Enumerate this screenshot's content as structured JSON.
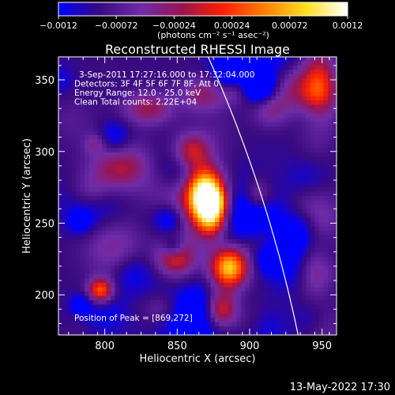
{
  "chart_data": {
    "type": "heatmap",
    "title": "Reconstructed RHESSI Image",
    "xlabel": "Heliocentric X (arcsec)",
    "ylabel": "Heliocentric Y (arcsec)",
    "xlim": [
      768,
      960
    ],
    "ylim": [
      172,
      366
    ],
    "xticks": [
      800,
      850,
      900,
      950
    ],
    "yticks": [
      200,
      250,
      300,
      350
    ],
    "colorbar": {
      "min": -0.0012,
      "max": 0.0012,
      "ticks": [
        "-0.0012",
        "-0.00072",
        "-0.00024",
        "0.00024",
        "0.00072",
        "0.0012"
      ],
      "colors": [
        "#0000ff",
        "#3a0a80",
        "#6f2ca8",
        "#9a1450",
        "#ff2000",
        "#ff8000",
        "#ffe020",
        "#ffffff"
      ],
      "units_label": "(photons cm⁻² s⁻¹ asec⁻²)"
    },
    "annotations": [
      "3-Sep-2011 17:27:16.000 to 17:32:04.000",
      "Detectors: 3F 4F 5F 6F 7F 8F, Att 0",
      "Energy Range: 12.0 - 25.0 keV",
      "Clean     Total counts: 2.22E+04"
    ],
    "peak_label": "Position of Peak = [869,272]",
    "peak": [
      869,
      272
    ],
    "sources": [
      {
        "x": 869,
        "y": 272,
        "amp": 1.0,
        "sx": 9,
        "sy": 13
      },
      {
        "x": 874,
        "y": 255,
        "amp": 0.75,
        "sx": 8,
        "sy": 12
      },
      {
        "x": 886,
        "y": 219,
        "amp": 0.85,
        "sx": 9,
        "sy": 10
      },
      {
        "x": 860,
        "y": 300,
        "amp": 0.5,
        "sx": 9,
        "sy": 9
      },
      {
        "x": 880,
        "y": 190,
        "amp": 0.55,
        "sx": 8,
        "sy": 9
      },
      {
        "x": 797,
        "y": 203,
        "amp": 0.65,
        "sx": 6,
        "sy": 6
      },
      {
        "x": 810,
        "y": 290,
        "amp": 0.45,
        "sx": 14,
        "sy": 12
      },
      {
        "x": 790,
        "y": 272,
        "amp": 0.35,
        "sx": 10,
        "sy": 10
      },
      {
        "x": 848,
        "y": 225,
        "amp": 0.4,
        "sx": 9,
        "sy": 8
      },
      {
        "x": 870,
        "y": 340,
        "amp": 0.35,
        "sx": 12,
        "sy": 9
      },
      {
        "x": 948,
        "y": 345,
        "amp": 0.45,
        "sx": 8,
        "sy": 18
      },
      {
        "x": 945,
        "y": 215,
        "amp": 0.3,
        "sx": 8,
        "sy": 12
      },
      {
        "x": 915,
        "y": 330,
        "amp": 0.3,
        "sx": 9,
        "sy": 10
      },
      {
        "x": 830,
        "y": 330,
        "amp": 0.35,
        "sx": 12,
        "sy": 8
      },
      {
        "x": 905,
        "y": 270,
        "amp": 0.25,
        "sx": 6,
        "sy": 8
      },
      {
        "x": 840,
        "y": 190,
        "amp": 0.25,
        "sx": 10,
        "sy": 8
      }
    ]
  },
  "footer": {
    "date": "13-May-2022 17:30"
  }
}
